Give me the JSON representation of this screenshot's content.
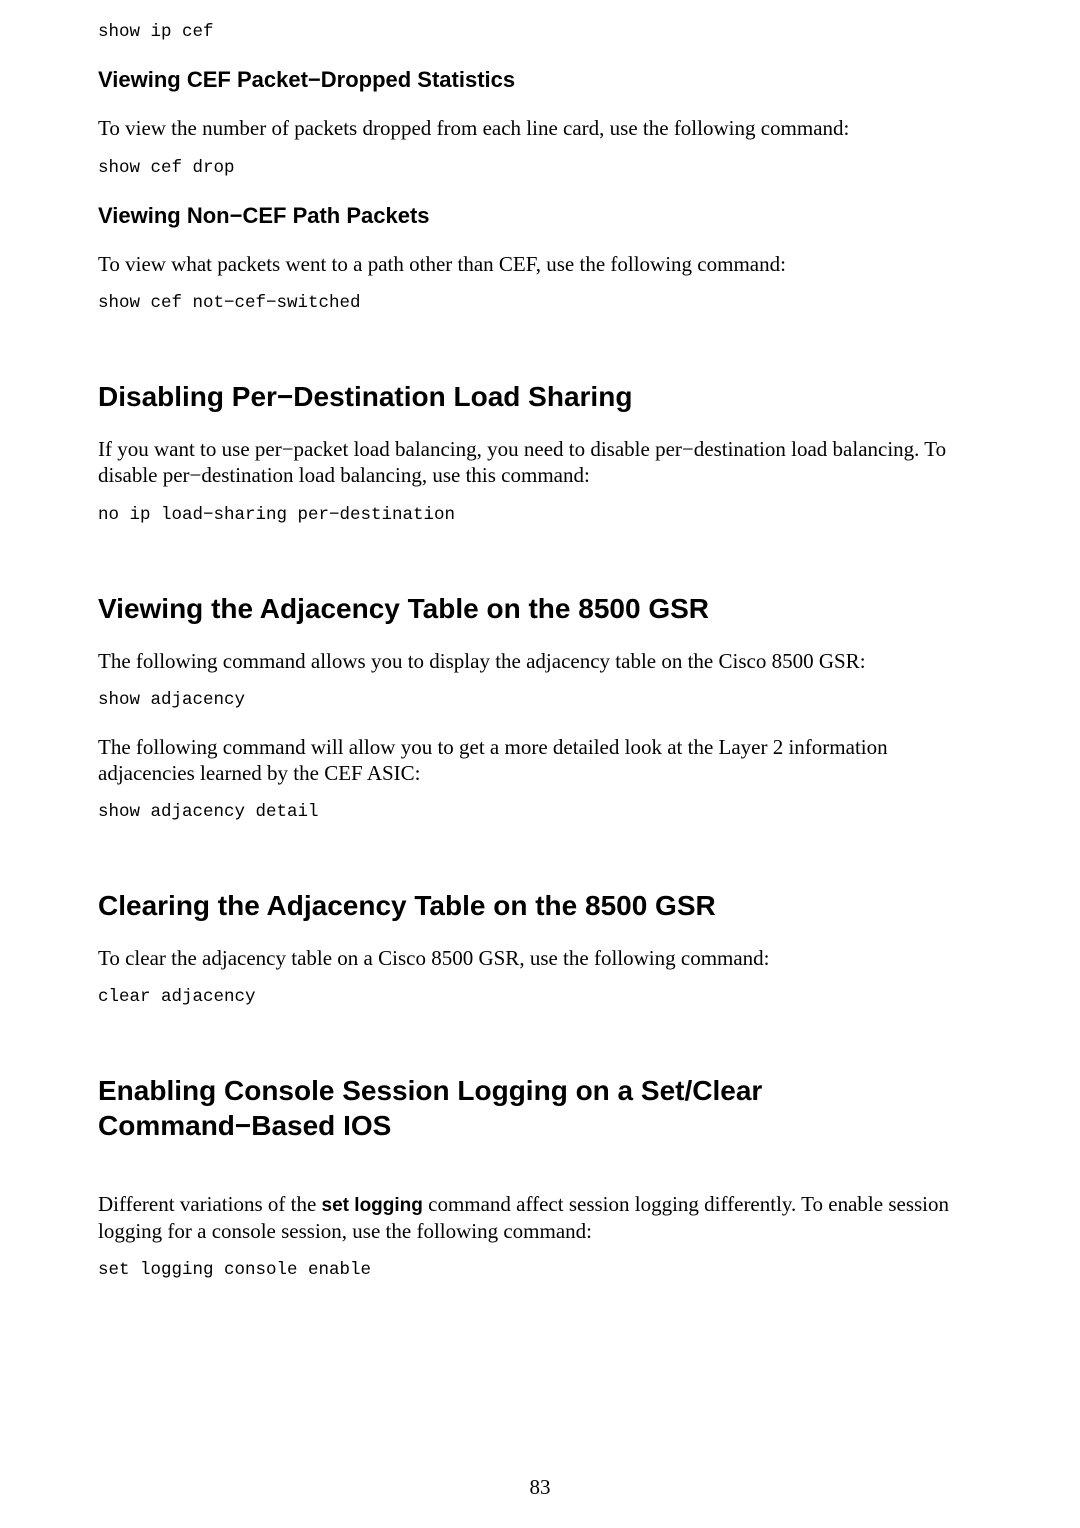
{
  "page_number": "83",
  "intro_code": "show ip cef",
  "sec1": {
    "heading": "Viewing CEF Packet−Dropped Statistics",
    "body": "To view the number of packets dropped from each line card, use the following command:",
    "code": "show cef drop"
  },
  "sec2": {
    "heading": "Viewing Non−CEF Path Packets",
    "body": "To view what packets went to a path other than CEF, use the following command:",
    "code": "show cef not−cef−switched"
  },
  "sec3": {
    "heading": "Disabling Per−Destination Load Sharing",
    "body": "If you want to use per−packet load balancing, you need to disable per−destination load balancing. To disable per−destination load balancing, use this command:",
    "code": "no ip load−sharing per−destination"
  },
  "sec4": {
    "heading": "Viewing the Adjacency Table on the 8500 GSR",
    "body1": "The following command allows you to display the adjacency table on the Cisco 8500 GSR:",
    "code1": "show adjacency",
    "body2": "The following command will allow you to get a more detailed look at the Layer 2 information adjacencies learned by the CEF ASIC:",
    "code2": "show adjacency detail"
  },
  "sec5": {
    "heading": "Clearing the Adjacency Table on the 8500 GSR",
    "body": "To clear the adjacency table on a Cisco 8500 GSR, use the following command:",
    "code": "clear adjacency"
  },
  "sec6": {
    "heading": "Enabling Console Session Logging on a Set/Clear Command−Based IOS",
    "body_pre": "Different variations of the ",
    "body_bold": "set logging",
    "body_post": " command affect session logging differently. To enable session logging for a console session, use the following command:",
    "code": "set logging console enable"
  }
}
